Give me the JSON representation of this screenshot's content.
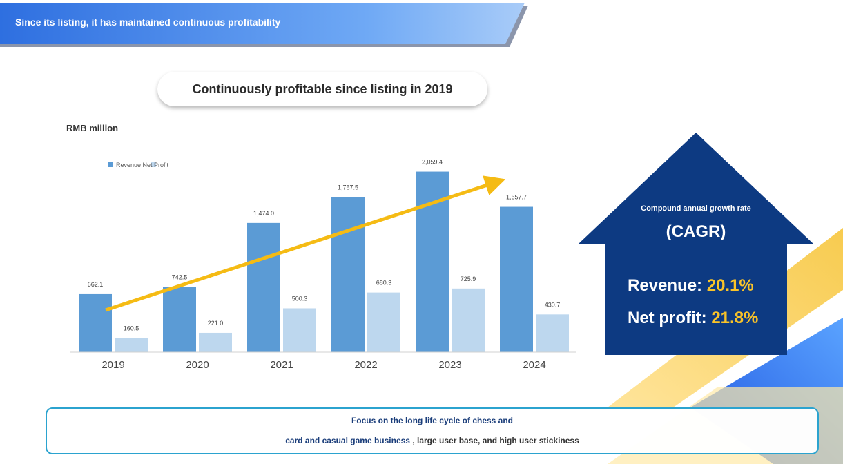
{
  "header": {
    "title": "Since its listing, it has maintained continuous profitability"
  },
  "subtitle": "Continuously profitable since listing in 2019",
  "unit_label": "RMB million",
  "cagr": {
    "caption": "Compound annual growth rate",
    "abbrev": "(CAGR)",
    "revenue_label": "Revenue:",
    "revenue_value": "20.1%",
    "net_profit_label": "Net profit:",
    "net_profit_value": "21.8%"
  },
  "footer": {
    "line1": "Focus on the long life cycle of chess and",
    "line2_highlight": "card and casual game business",
    "line2_rest": ", large user base, and high user stickiness"
  },
  "colors": {
    "revenue": "#5b9bd5",
    "net_profit": "#bdd7ee",
    "trend": "#f5bb14",
    "navy": "#0d3a82"
  },
  "chart_data": {
    "type": "bar",
    "title": "Continuously profitable since listing in 2019",
    "ylabel": "RMB million",
    "xlabel": "",
    "ylim": [
      0,
      2300
    ],
    "grid": false,
    "legend": "top-left",
    "legend_text": "Revenue Net Profit",
    "categories": [
      "2019",
      "2020",
      "2021",
      "2022",
      "2023",
      "2024"
    ],
    "series": [
      {
        "name": "Revenue",
        "values": [
          662.1,
          742.5,
          1474.0,
          1767.5,
          2059.4,
          1657.7
        ],
        "labels": [
          "662.1",
          "742.5",
          "1,474.0",
          "1,767.5",
          "2,059.4",
          "1,657.7"
        ]
      },
      {
        "name": "Net Profit",
        "values": [
          160.5,
          221.0,
          500.3,
          680.3,
          725.9,
          430.7
        ],
        "labels": [
          "160.5",
          "221.0",
          "500.3",
          "680.3",
          "725.9",
          "430.7"
        ]
      }
    ],
    "annotations": [
      "upward trend arrow"
    ]
  }
}
